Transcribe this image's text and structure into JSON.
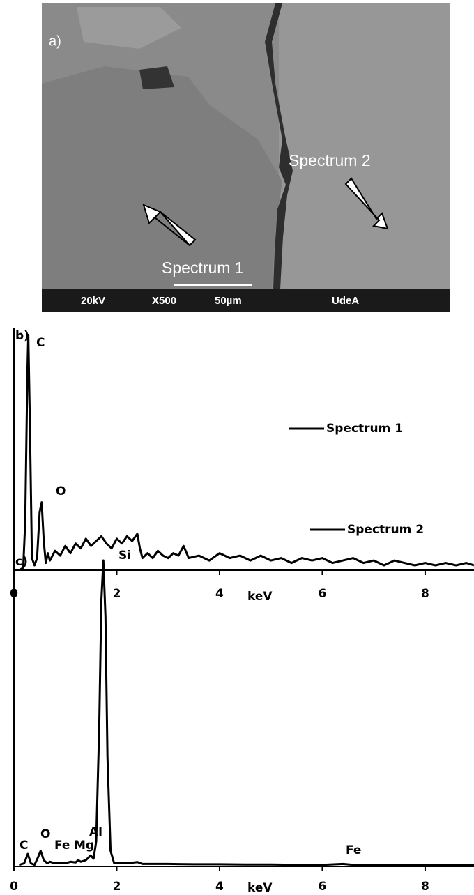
{
  "image": {
    "panel_label": "a)",
    "labels": [
      "Spectrum 2",
      "Spectrum 1"
    ],
    "info_bar": [
      "20kV",
      "X500",
      "50µm",
      "UdeA"
    ]
  },
  "chart_data": [
    {
      "type": "line",
      "panel_label": "b)",
      "x_label": "keV",
      "x": [
        0.1,
        0.18,
        0.22,
        0.26,
        0.28,
        0.31,
        0.35,
        0.4,
        0.45,
        0.5,
        0.54,
        0.58,
        0.62,
        0.66,
        0.7,
        0.8,
        0.9,
        1.0,
        1.1,
        1.2,
        1.3,
        1.4,
        1.5,
        1.6,
        1.7,
        1.8,
        1.9,
        2.0,
        2.1,
        2.2,
        2.3,
        2.4,
        2.45,
        2.5,
        2.6,
        2.7,
        2.8,
        2.9,
        3.0,
        3.1,
        3.2,
        3.3,
        3.4,
        3.6,
        3.8,
        4.0,
        4.2,
        4.4,
        4.6,
        4.8,
        5.0,
        5.2,
        5.4,
        5.6,
        5.8,
        6.0,
        6.2,
        6.4,
        6.6,
        6.8,
        7.0,
        7.2,
        7.4,
        7.6,
        7.8,
        8.0,
        8.2,
        8.4,
        8.6,
        8.8,
        8.95
      ],
      "series": [
        {
          "name": "Spectrum 1",
          "color": "#000000",
          "values": [
            0,
            1,
            20,
            80,
            97,
            60,
            5,
            2,
            5,
            24,
            28,
            12,
            3,
            7,
            4,
            8,
            6,
            10,
            7,
            11,
            9,
            13,
            10,
            12,
            14,
            11,
            9,
            13,
            11,
            14,
            12,
            15,
            9,
            5,
            7,
            5,
            8,
            6,
            5,
            7,
            6,
            10,
            5,
            6,
            4,
            7,
            5,
            6,
            4,
            6,
            4,
            5,
            3,
            5,
            4,
            5,
            3,
            4,
            5,
            3,
            4,
            2,
            4,
            3,
            2,
            3,
            2,
            3,
            2,
            3,
            2
          ]
        }
      ],
      "xlim": [
        0,
        8.95
      ],
      "xticks": [
        0,
        2,
        4,
        6,
        8
      ],
      "ylim": [
        0,
        100
      ],
      "annotations": [
        "C",
        "O"
      ],
      "legend": "right"
    },
    {
      "type": "line",
      "panel_label": "c)",
      "x_label": "keV",
      "x": [
        0.1,
        0.2,
        0.27,
        0.33,
        0.4,
        0.47,
        0.52,
        0.58,
        0.65,
        0.7,
        0.8,
        0.9,
        1.0,
        1.1,
        1.2,
        1.25,
        1.3,
        1.4,
        1.49,
        1.55,
        1.6,
        1.66,
        1.7,
        1.74,
        1.78,
        1.82,
        1.88,
        1.95,
        2.1,
        2.3,
        2.4,
        2.5,
        3.0,
        3.5,
        4.0,
        4.5,
        5.0,
        5.5,
        6.0,
        6.4,
        6.6,
        7.0,
        7.5,
        8.0,
        8.5,
        8.95
      ],
      "series": [
        {
          "name": "Spectrum 2",
          "color": "#000000",
          "values": [
            0.5,
            1,
            4,
            1,
            0.5,
            3,
            5,
            2,
            1,
            1.5,
            1,
            1.2,
            1,
            1.5,
            1.3,
            2,
            1.5,
            2,
            3.5,
            2.5,
            8,
            45,
            85,
            98,
            80,
            35,
            5,
            1,
            1,
            1.2,
            1.4,
            0.8,
            0.8,
            0.7,
            0.7,
            0.6,
            0.6,
            0.5,
            0.5,
            0.8,
            0.5,
            0.5,
            0.4,
            0.4,
            0.4,
            0.4
          ]
        }
      ],
      "xlim": [
        0,
        8.95
      ],
      "xticks": [
        0,
        2,
        4,
        6,
        8
      ],
      "ylim": [
        0,
        100
      ],
      "annotations": [
        "Si",
        "O",
        "C",
        "Fe",
        "Mg",
        "Al",
        "Fe"
      ],
      "legend": "right"
    }
  ]
}
